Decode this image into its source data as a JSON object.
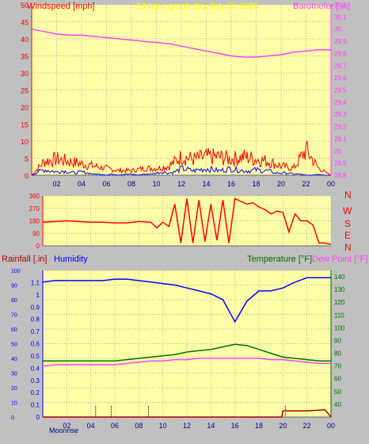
{
  "header": {
    "left_title": "Windspeed [mph]",
    "center_title": "24 hour graph day   July 20 2025",
    "right_title": "Barometer [.in]"
  },
  "colors": {
    "plot_bg": "#ffffa8",
    "frame": "#c0c0c0",
    "wind_red": "#ff0000",
    "gust_blue": "#0000ff",
    "wind_green": "#008000",
    "baro": "#ff40ff",
    "dir_line": "#ff0000",
    "humidity": "#0000ff",
    "temperature": "#007000",
    "dewpoint": "#ff40ff",
    "rain": "#aa0000"
  },
  "bottom_labels": {
    "rainfall": "Rainfall [.in]",
    "humidity": "Humidity",
    "temperature": "Temperature [°F]",
    "dew_point": "Dew Point [°F]",
    "moonrise": "Moonrise"
  },
  "x_ticks": [
    "02",
    "04",
    "06",
    "08",
    "10",
    "12",
    "14",
    "16",
    "18",
    "20",
    "22",
    "00"
  ],
  "compass": [
    "N",
    "W",
    "S",
    "E",
    "N"
  ],
  "chart_data": [
    {
      "id": "wind-barometer",
      "type": "line",
      "title": "24 hour graph day   July 20 2025",
      "xlabel": "",
      "x_ticks": [
        "02",
        "04",
        "06",
        "08",
        "10",
        "12",
        "14",
        "16",
        "18",
        "20",
        "22",
        "00"
      ],
      "y_left": {
        "label": "Windspeed [mph]",
        "range": [
          0,
          50
        ],
        "ticks": [
          0,
          5,
          10,
          15,
          20,
          25,
          30,
          35,
          40,
          45,
          50
        ]
      },
      "y_right": {
        "label": "Barometer [.in]",
        "range": [
          28.8,
          30.2
        ],
        "ticks": [
          "28.8",
          "28.9",
          "29",
          "29.1",
          "29.2",
          "29.3",
          "29.4",
          "29.5",
          "29.6",
          "29.7",
          "29.8",
          "29.9",
          "30",
          "30.1",
          "30.2"
        ]
      },
      "series": [
        {
          "name": "Barometer [.in]",
          "x": [
            0,
            1,
            2,
            3,
            4,
            5,
            6,
            7,
            8,
            9,
            10,
            11,
            12,
            13,
            14,
            15,
            16,
            17,
            18,
            19,
            20,
            21,
            22,
            23,
            24
          ],
          "values": [
            30.0,
            29.98,
            29.96,
            29.95,
            29.95,
            29.94,
            29.93,
            29.92,
            29.91,
            29.9,
            29.89,
            29.88,
            29.86,
            29.84,
            29.82,
            29.8,
            29.78,
            29.77,
            29.77,
            29.78,
            29.79,
            29.81,
            29.82,
            29.83,
            29.83
          ]
        },
        {
          "name": "Windspeed [mph]",
          "x": [
            0,
            0.5,
            1,
            1.5,
            2,
            2.5,
            3,
            3.5,
            4,
            4.5,
            5,
            5.5,
            6,
            6.5,
            7,
            7.5,
            8,
            8.5,
            9,
            9.5,
            10,
            10.5,
            11,
            11.5,
            12,
            12.5,
            13,
            13.5,
            14,
            14.5,
            15,
            15.5,
            16,
            16.5,
            17,
            17.5,
            18,
            18.5,
            19,
            19.5,
            20,
            20.5,
            21,
            21.5,
            22,
            22.5,
            23,
            23.5,
            24
          ],
          "values": [
            0,
            3,
            5,
            4,
            3,
            4,
            3,
            2,
            3,
            2,
            1,
            1,
            0,
            1,
            0,
            1,
            1,
            0,
            1,
            1,
            2,
            3,
            2,
            3,
            6,
            5,
            4,
            5,
            6,
            5,
            4,
            5,
            6,
            5,
            4,
            4,
            5,
            4,
            4,
            2,
            2,
            2,
            1,
            1,
            0,
            0,
            1,
            0,
            0
          ]
        },
        {
          "name": "Wind Gust",
          "x": [
            0,
            1,
            2,
            3,
            4,
            5,
            6,
            7,
            8,
            9,
            10,
            11,
            12,
            13,
            14,
            15,
            16,
            17,
            18,
            19,
            20,
            21,
            22,
            23,
            24
          ],
          "values": [
            0,
            6,
            7,
            6,
            5,
            4,
            3,
            2,
            2,
            3,
            3,
            4,
            8,
            7,
            8,
            8,
            7,
            8,
            7,
            6,
            4,
            3,
            11,
            3,
            0
          ]
        }
      ]
    },
    {
      "id": "wind-direction",
      "type": "line",
      "title": "",
      "y": {
        "label": "",
        "range": [
          0,
          360
        ],
        "ticks": [
          0,
          90,
          180,
          270,
          360
        ]
      },
      "series": [
        {
          "name": "",
          "x": [
            0,
            1,
            2,
            3,
            4,
            5,
            6,
            7,
            8,
            9,
            9.5,
            10,
            10.5,
            11,
            11.5,
            12,
            12.5,
            13,
            13.5,
            14,
            14.5,
            15,
            15.5,
            16,
            16.5,
            17,
            17.5,
            18,
            18.5,
            19,
            19.5,
            20,
            20.5,
            21,
            21.5,
            22,
            22.5,
            23,
            23.5,
            24
          ],
          "values": [
            170,
            175,
            180,
            175,
            170,
            170,
            165,
            165,
            175,
            170,
            130,
            170,
            140,
            300,
            20,
            340,
            20,
            330,
            30,
            300,
            40,
            330,
            20,
            340,
            320,
            300,
            310,
            280,
            260,
            230,
            250,
            240,
            100,
            230,
            180,
            180,
            150,
            20,
            20,
            10
          ]
        }
      ]
    },
    {
      "id": "temperature-humidity-rain",
      "type": "line",
      "title": "",
      "y_left": {
        "label": "Rainfall [.in]",
        "range": [
          0,
          1.2
        ],
        "ticks": [
          "0",
          "0.1",
          "0.2",
          "0.3",
          "0.4",
          "0.5",
          "0.6",
          "0.7",
          "0.8",
          "0.9",
          "1",
          "1.1"
        ]
      },
      "y_humidity": {
        "label": "Humidity",
        "range": [
          0,
          100
        ],
        "ticks": [
          0,
          10,
          20,
          30,
          40,
          50,
          60,
          70,
          80,
          90,
          100
        ]
      },
      "y_right": {
        "label": "Temperature [°F]",
        "range": [
          30,
          145
        ],
        "ticks": [
          40,
          50,
          60,
          70,
          80,
          90,
          100,
          110,
          120,
          130,
          140
        ]
      },
      "series": [
        {
          "name": "Humidity",
          "x": [
            0,
            1,
            2,
            3,
            4,
            5,
            6,
            7,
            8,
            9,
            10,
            11,
            12,
            13,
            14,
            15,
            16,
            17,
            18,
            19,
            20,
            21,
            22,
            23,
            24
          ],
          "values": [
            92,
            93,
            93,
            93,
            93,
            93,
            94,
            94,
            93,
            92,
            91,
            90,
            88,
            86,
            84,
            80,
            65,
            79,
            86,
            86,
            88,
            92,
            95,
            95,
            95
          ]
        },
        {
          "name": "Temperature [°F]",
          "x": [
            0,
            1,
            2,
            3,
            4,
            5,
            6,
            7,
            8,
            9,
            10,
            11,
            12,
            13,
            14,
            15,
            16,
            17,
            18,
            19,
            20,
            21,
            22,
            23,
            24
          ],
          "values": [
            74,
            74,
            74,
            74,
            74,
            74,
            74,
            75,
            76,
            77,
            78,
            79,
            81,
            82,
            83,
            85,
            87,
            86,
            83,
            80,
            77,
            76,
            75,
            74,
            74
          ]
        },
        {
          "name": "Dew Point [°F]",
          "x": [
            0,
            1,
            2,
            3,
            4,
            5,
            6,
            7,
            8,
            9,
            10,
            11,
            12,
            13,
            14,
            15,
            16,
            17,
            18,
            19,
            20,
            21,
            22,
            23,
            24
          ],
          "values": [
            70,
            71,
            71,
            71,
            71,
            71,
            71,
            72,
            73,
            74,
            74,
            75,
            75,
            76,
            76,
            76,
            76,
            76,
            76,
            75,
            75,
            74,
            73,
            72,
            72
          ]
        },
        {
          "name": "Rainfall [.in]",
          "x": [
            0,
            19.9,
            20,
            22,
            23.5,
            24
          ],
          "values": [
            0,
            0,
            0.05,
            0.05,
            0.06,
            0
          ]
        }
      ]
    }
  ]
}
